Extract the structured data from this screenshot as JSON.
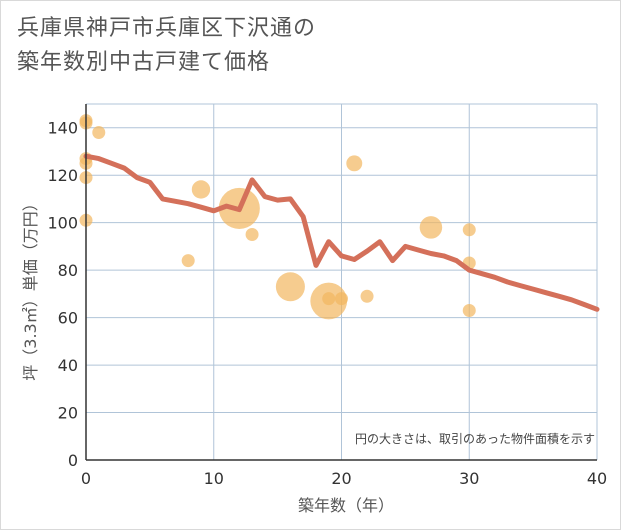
{
  "title": {
    "line1": "兵庫県神戸市兵庫区下沢通の",
    "line2": "築年数別中古戸建て価格"
  },
  "chart_data": {
    "type": "scatter",
    "title": "兵庫県神戸市兵庫区下沢通の築年数別中古戸建て価格",
    "xlabel": "築年数（年）",
    "ylabel": "坪（3.3㎡）単価（万円）",
    "xlim": [
      0,
      40
    ],
    "ylim": [
      0,
      150
    ],
    "xticks": [
      "0",
      "10",
      "20",
      "30",
      "40"
    ],
    "yticks": [
      "0",
      "20",
      "40",
      "60",
      "80",
      "100",
      "120",
      "140"
    ],
    "note": "円の大きさは、取引のあった物件面積を示す",
    "colors": {
      "bubble": "#f2b65f",
      "line": "#d4705a",
      "grid": "#b0c4d8",
      "axis": "#333333"
    },
    "scatter": [
      {
        "x": 0,
        "y": 143,
        "size": 1
      },
      {
        "x": 0,
        "y": 142,
        "size": 1
      },
      {
        "x": 0,
        "y": 127,
        "size": 1
      },
      {
        "x": 0,
        "y": 125,
        "size": 1
      },
      {
        "x": 0,
        "y": 119,
        "size": 1
      },
      {
        "x": 0,
        "y": 101,
        "size": 1
      },
      {
        "x": 1,
        "y": 138,
        "size": 1
      },
      {
        "x": 8,
        "y": 84,
        "size": 1
      },
      {
        "x": 9,
        "y": 114,
        "size": 2
      },
      {
        "x": 12,
        "y": 106,
        "size": 10
      },
      {
        "x": 13,
        "y": 95,
        "size": 1
      },
      {
        "x": 16,
        "y": 73,
        "size": 5
      },
      {
        "x": 19,
        "y": 67,
        "size": 8
      },
      {
        "x": 19,
        "y": 68,
        "size": 1
      },
      {
        "x": 20,
        "y": 68,
        "size": 1
      },
      {
        "x": 21,
        "y": 125,
        "size": 1.5
      },
      {
        "x": 22,
        "y": 69,
        "size": 1
      },
      {
        "x": 27,
        "y": 98,
        "size": 3
      },
      {
        "x": 30,
        "y": 97,
        "size": 1
      },
      {
        "x": 30,
        "y": 83,
        "size": 1
      },
      {
        "x": 30,
        "y": 63,
        "size": 1
      }
    ],
    "trend": {
      "x": [
        0,
        1,
        2,
        3,
        4,
        5,
        6,
        7,
        8,
        9,
        10,
        11,
        12,
        13,
        14,
        15,
        16,
        17,
        18,
        19,
        20,
        21,
        22,
        23,
        24,
        25,
        26,
        27,
        28,
        29,
        30,
        31,
        32,
        33,
        34,
        35,
        36,
        37,
        38,
        39,
        40
      ],
      "y": [
        128,
        127,
        125,
        123,
        119,
        117,
        110,
        109,
        108,
        106.5,
        105,
        107,
        105.5,
        118,
        111,
        109.5,
        110,
        102.5,
        82,
        92,
        86,
        84.5,
        88,
        92,
        84,
        90,
        88.5,
        87,
        86,
        84,
        80,
        78.5,
        77,
        75,
        73.5,
        72,
        70.5,
        69,
        67.5,
        65.5,
        63.5
      ]
    }
  }
}
